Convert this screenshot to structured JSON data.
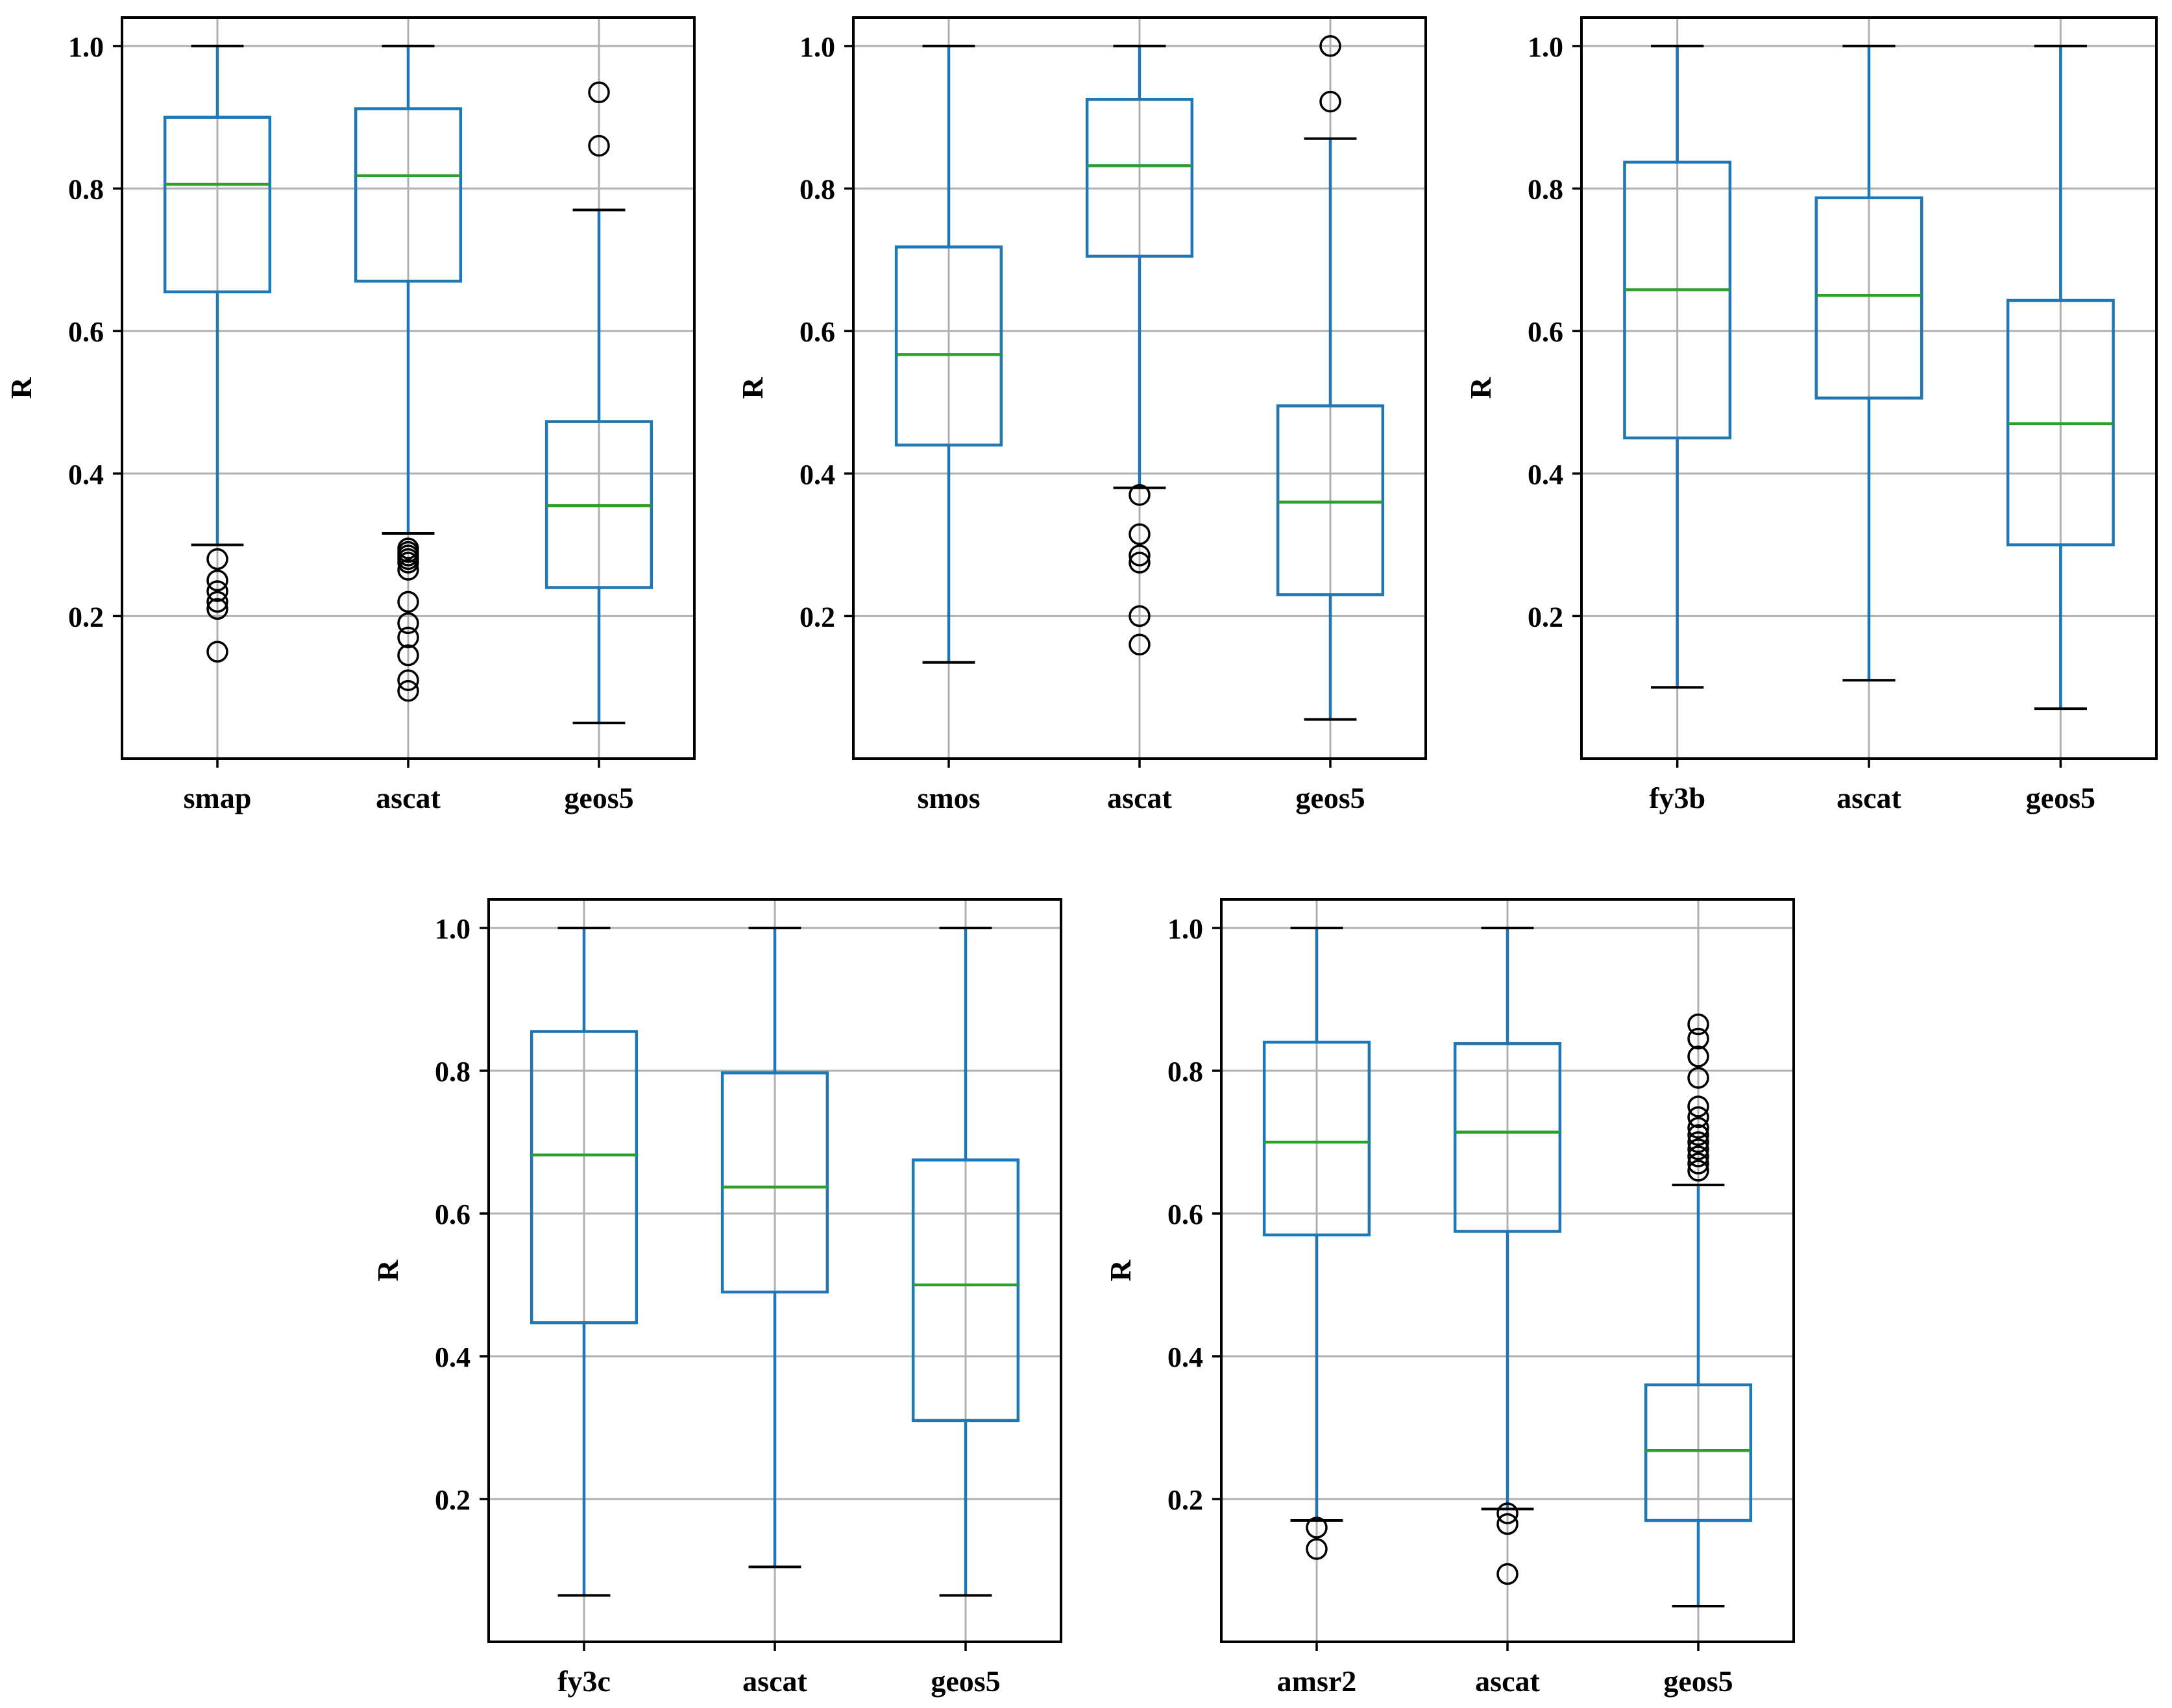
{
  "chart_data": [
    {
      "type": "box",
      "ylabel": "R",
      "yticks": [
        0.2,
        0.4,
        0.6,
        0.8,
        1.0
      ],
      "ylim": [
        0.0,
        1.04
      ],
      "grid": true,
      "categories": [
        "smap",
        "ascat",
        "geos5"
      ],
      "boxes": [
        {
          "name": "smap",
          "whislo": 0.3,
          "q1": 0.655,
          "med": 0.806,
          "q3": 0.9,
          "whishi": 1.0,
          "fliers": [
            0.28,
            0.25,
            0.235,
            0.22,
            0.21,
            0.15
          ]
        },
        {
          "name": "ascat",
          "whislo": 0.316,
          "q1": 0.67,
          "med": 0.818,
          "q3": 0.912,
          "whishi": 1.0,
          "fliers": [
            0.295,
            0.29,
            0.285,
            0.28,
            0.275,
            0.265,
            0.22,
            0.19,
            0.17,
            0.145,
            0.11,
            0.095
          ]
        },
        {
          "name": "geos5",
          "whislo": 0.05,
          "q1": 0.24,
          "med": 0.355,
          "q3": 0.473,
          "whishi": 0.77,
          "fliers": [
            0.935,
            0.86
          ]
        }
      ]
    },
    {
      "type": "box",
      "ylabel": "R",
      "yticks": [
        0.2,
        0.4,
        0.6,
        0.8,
        1.0
      ],
      "ylim": [
        0.0,
        1.04
      ],
      "grid": true,
      "categories": [
        "smos",
        "ascat",
        "geos5"
      ],
      "boxes": [
        {
          "name": "smos",
          "whislo": 0.135,
          "q1": 0.44,
          "med": 0.567,
          "q3": 0.718,
          "whishi": 1.0,
          "fliers": []
        },
        {
          "name": "ascat",
          "whislo": 0.38,
          "q1": 0.705,
          "med": 0.832,
          "q3": 0.925,
          "whishi": 1.0,
          "fliers": [
            0.37,
            0.315,
            0.285,
            0.275,
            0.2,
            0.16
          ]
        },
        {
          "name": "geos5",
          "whislo": 0.055,
          "q1": 0.23,
          "med": 0.36,
          "q3": 0.495,
          "whishi": 0.87,
          "fliers": [
            1.0,
            0.922
          ]
        }
      ]
    },
    {
      "type": "box",
      "ylabel": "R",
      "yticks": [
        0.2,
        0.4,
        0.6,
        0.8,
        1.0
      ],
      "ylim": [
        0.0,
        1.04
      ],
      "grid": true,
      "categories": [
        "fy3b",
        "ascat",
        "geos5"
      ],
      "boxes": [
        {
          "name": "fy3b",
          "whislo": 0.1,
          "q1": 0.45,
          "med": 0.658,
          "q3": 0.837,
          "whishi": 1.0,
          "fliers": []
        },
        {
          "name": "ascat",
          "whislo": 0.11,
          "q1": 0.506,
          "med": 0.65,
          "q3": 0.787,
          "whishi": 1.0,
          "fliers": []
        },
        {
          "name": "geos5",
          "whislo": 0.07,
          "q1": 0.3,
          "med": 0.47,
          "q3": 0.643,
          "whishi": 1.0,
          "fliers": []
        }
      ]
    },
    {
      "type": "box",
      "ylabel": "R",
      "yticks": [
        0.2,
        0.4,
        0.6,
        0.8,
        1.0
      ],
      "ylim": [
        0.0,
        1.04
      ],
      "grid": true,
      "categories": [
        "fy3c",
        "ascat",
        "geos5"
      ],
      "boxes": [
        {
          "name": "fy3c",
          "whislo": 0.065,
          "q1": 0.447,
          "med": 0.682,
          "q3": 0.855,
          "whishi": 1.0,
          "fliers": []
        },
        {
          "name": "ascat",
          "whislo": 0.105,
          "q1": 0.49,
          "med": 0.637,
          "q3": 0.797,
          "whishi": 1.0,
          "fliers": []
        },
        {
          "name": "geos5",
          "whislo": 0.065,
          "q1": 0.31,
          "med": 0.5,
          "q3": 0.675,
          "whishi": 1.0,
          "fliers": []
        }
      ]
    },
    {
      "type": "box",
      "ylabel": "R",
      "yticks": [
        0.2,
        0.4,
        0.6,
        0.8,
        1.0
      ],
      "ylim": [
        0.0,
        1.04
      ],
      "grid": true,
      "categories": [
        "amsr2",
        "ascat",
        "geos5"
      ],
      "boxes": [
        {
          "name": "amsr2",
          "whislo": 0.17,
          "q1": 0.57,
          "med": 0.7,
          "q3": 0.84,
          "whishi": 1.0,
          "fliers": [
            0.16,
            0.13
          ]
        },
        {
          "name": "ascat",
          "whislo": 0.186,
          "q1": 0.575,
          "med": 0.714,
          "q3": 0.838,
          "whishi": 1.0,
          "fliers": [
            0.18,
            0.165,
            0.095
          ]
        },
        {
          "name": "geos5",
          "whislo": 0.05,
          "q1": 0.17,
          "med": 0.268,
          "q3": 0.36,
          "whishi": 0.64,
          "fliers": [
            0.865,
            0.845,
            0.82,
            0.79,
            0.75,
            0.735,
            0.72,
            0.71,
            0.7,
            0.69,
            0.68,
            0.67,
            0.66
          ]
        }
      ]
    }
  ],
  "colors": {
    "box": "#1f77b4",
    "median": "#2ca02c",
    "grid": "#b0b0b0",
    "flier": "#000000"
  }
}
